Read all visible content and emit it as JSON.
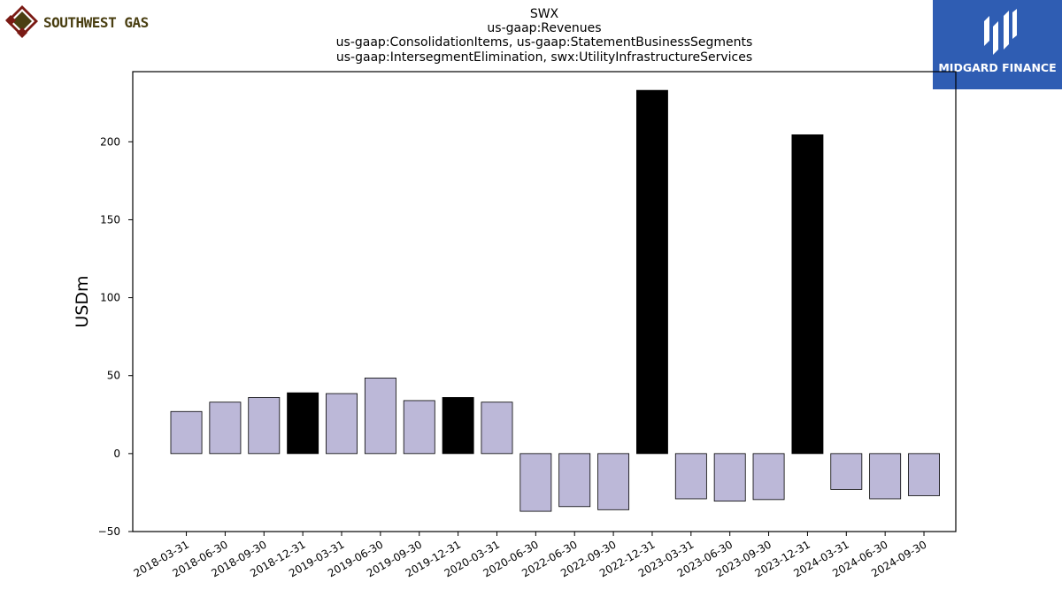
{
  "header": {
    "title_lines": [
      "SWX",
      "us-gaap:Revenues",
      "us-gaap:ConsolidationItems, us-gaap:StatementBusinessSegments",
      "us-gaap:IntersegmentElimination, swx:UtilityInfrastructureServices"
    ]
  },
  "logos": {
    "left": {
      "text": "SOUTHWEST GAS",
      "icon": "southwest-gas-logo-icon",
      "color": "#4a3f12",
      "accent": "#7a1a14"
    },
    "right": {
      "text": "MIDGARD FINANCE",
      "icon": "midgard-finance-logo-icon",
      "background": "#2f5db3"
    }
  },
  "chart_data": {
    "type": "bar",
    "ylabel": "USDm",
    "xlabel": "",
    "ylim": [
      -50,
      245
    ],
    "yticks": [
      -50,
      0,
      50,
      100,
      150,
      200
    ],
    "grid": false,
    "categories": [
      "2018-03-31",
      "2018-06-30",
      "2018-09-30",
      "2018-12-31",
      "2019-03-31",
      "2019-06-30",
      "2019-09-30",
      "2019-12-31",
      "2020-03-31",
      "2020-06-30",
      "2022-06-30",
      "2022-09-30",
      "2022-12-31",
      "2023-03-31",
      "2023-06-30",
      "2023-09-30",
      "2023-12-31",
      "2024-03-31",
      "2024-06-30",
      "2024-09-30"
    ],
    "values": [
      27,
      33,
      36,
      39,
      38.5,
      48.5,
      34,
      36,
      33,
      -37,
      -34,
      -36,
      233,
      -29,
      -30.5,
      -29.5,
      204.5,
      -23,
      -29,
      -27
    ],
    "highlight": [
      false,
      false,
      false,
      true,
      false,
      false,
      false,
      true,
      false,
      false,
      false,
      false,
      true,
      false,
      false,
      false,
      true,
      false,
      false,
      false
    ],
    "colors": {
      "normal": "#bcb8d8",
      "highlight": "#000000",
      "edge": "#000000"
    }
  }
}
